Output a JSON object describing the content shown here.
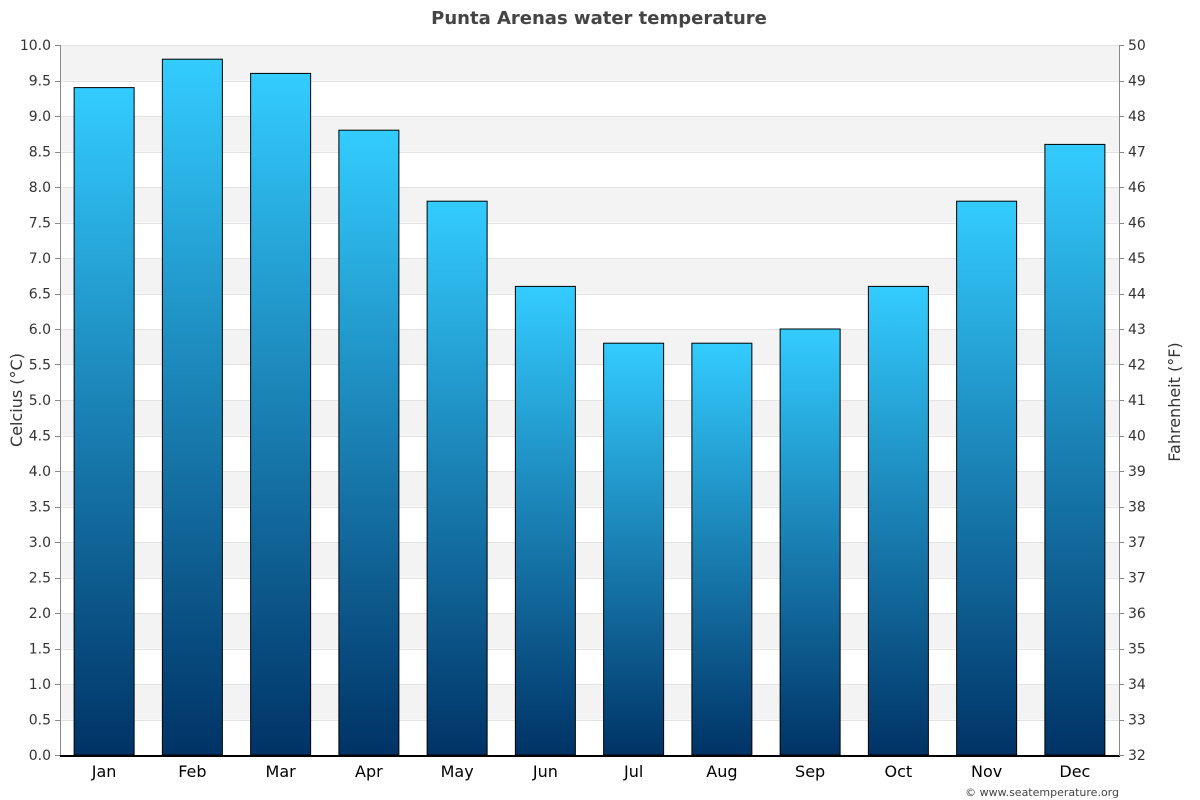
{
  "chart_data": {
    "type": "bar",
    "title": "Punta Arenas water temperature",
    "categories": [
      "Jan",
      "Feb",
      "Mar",
      "Apr",
      "May",
      "Jun",
      "Jul",
      "Aug",
      "Sep",
      "Oct",
      "Nov",
      "Dec"
    ],
    "series": [
      {
        "values": [
          9.4,
          9.8,
          9.6,
          8.8,
          7.8,
          6.6,
          5.8,
          5.8,
          6.0,
          6.6,
          7.8,
          8.6
        ]
      }
    ],
    "ylabel": "Celcius (°C)",
    "y2label": "Fahrenheit (°F)",
    "ylim": [
      0,
      10
    ],
    "y_ticks": [
      "0.0",
      "0.5",
      "1.0",
      "1.5",
      "2.0",
      "2.5",
      "3.0",
      "3.5",
      "4.0",
      "4.5",
      "5.0",
      "5.5",
      "6.0",
      "6.5",
      "7.0",
      "7.5",
      "8.0",
      "8.5",
      "9.0",
      "9.5",
      "10.0"
    ],
    "y2_ticks": [
      "32",
      "33",
      "34",
      "35",
      "36",
      "37",
      "37",
      "38",
      "39",
      "40",
      "41",
      "42",
      "43",
      "44",
      "45",
      "46",
      "46",
      "47",
      "48",
      "49",
      "50"
    ],
    "grid": true,
    "bar_color_top": "#33ccff",
    "bar_color_bottom": "#003366",
    "band_color": "#f3f3f3"
  },
  "credit": "© www.seatemperature.org"
}
